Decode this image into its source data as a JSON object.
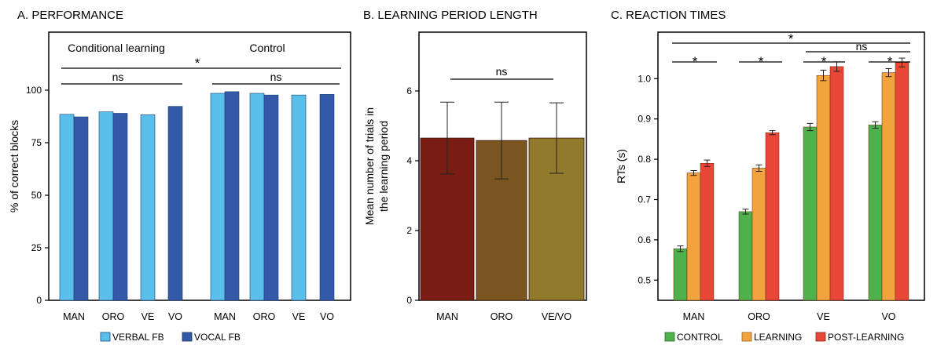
{
  "chart_data": [
    {
      "type": "bar",
      "title": "A. PERFORMANCE",
      "ylabel": "% of correct blocks",
      "ylim": [
        0,
        100
      ],
      "yticks": [
        0,
        25,
        50,
        75,
        100
      ],
      "groups": [
        {
          "label": "Conditional learning",
          "categories": [
            "MAN",
            "ORO",
            "VE",
            "VO"
          ]
        },
        {
          "label": "Control",
          "categories": [
            "MAN",
            "ORO",
            "VE",
            "VO"
          ]
        }
      ],
      "series": [
        {
          "name": "VERBAL FB",
          "color": "#5bbfec",
          "values": [
            88.5,
            89.7,
            88.3,
            null,
            98.5,
            98.5,
            97.7,
            null
          ]
        },
        {
          "name": "VOCAL FB",
          "color": "#3359a8",
          "values": [
            87.3,
            89.0,
            null,
            92.3,
            99.3,
            97.7,
            null,
            98.0
          ]
        }
      ],
      "categories": [
        "MAN",
        "ORO",
        "VE",
        "VO",
        "MAN",
        "ORO",
        "VE",
        "VO"
      ],
      "annotations": [
        "*",
        "ns",
        "ns"
      ],
      "legend": "bottom"
    },
    {
      "type": "bar",
      "title": "B. LEARNING PERIOD LENGTH",
      "ylabel": "Mean number of trials in the learning period",
      "ylabel_lines": [
        "Mean number of trials in",
        "the learning period"
      ],
      "ylim": [
        0,
        7.5
      ],
      "yticks": [
        0,
        2,
        4,
        6
      ],
      "categories": [
        "MAN",
        "ORO",
        "VE/VO"
      ],
      "values": [
        4.65,
        4.58,
        4.65
      ],
      "errors": [
        1.03,
        1.1,
        1.01
      ],
      "colors": [
        "#7b1c14",
        "#7b5520",
        "#917a2b"
      ],
      "annotations": [
        "ns"
      ]
    },
    {
      "type": "bar",
      "title": "C. REACTION TIMES",
      "ylabel": "RTs (s)",
      "ylim": [
        0.45,
        1.1
      ],
      "yticks": [
        0.5,
        0.6,
        0.7,
        0.8,
        0.9,
        1.0
      ],
      "categories": [
        "MAN",
        "ORO",
        "VE",
        "VO"
      ],
      "series": [
        {
          "name": "CONTROL",
          "color": "#4fb14b",
          "values": [
            0.578,
            0.67,
            0.88,
            0.885
          ],
          "errors": [
            0.007,
            0.006,
            0.009,
            0.008
          ]
        },
        {
          "name": "LEARNING",
          "color": "#f2a33d",
          "values": [
            0.766,
            0.778,
            1.008,
            1.015
          ],
          "errors": [
            0.006,
            0.008,
            0.013,
            0.01
          ]
        },
        {
          "name": "POST-LEARNING",
          "color": "#e84637",
          "values": [
            0.79,
            0.866,
            1.03,
            1.04
          ],
          "errors": [
            0.008,
            0.005,
            0.012,
            0.011
          ]
        }
      ],
      "annotations": [
        "*",
        "ns",
        "*",
        "*",
        "*",
        "*"
      ],
      "legend": "bottom"
    }
  ]
}
